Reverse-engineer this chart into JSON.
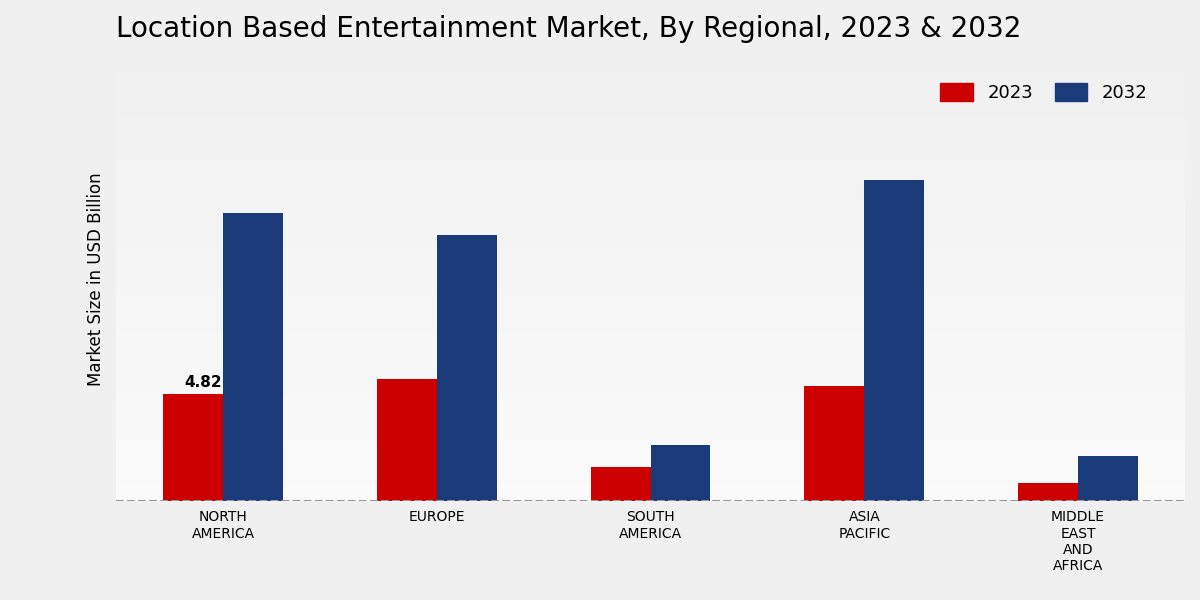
{
  "title": "Location Based Entertainment Market, By Regional, 2023 & 2032",
  "ylabel": "Market Size in USD Billion",
  "categories": [
    "NORTH\nAMERICA",
    "EUROPE",
    "SOUTH\nAMERICA",
    "ASIA\nPACIFIC",
    "MIDDLE\nEAST\nAND\nAFRICA"
  ],
  "values_2023": [
    4.82,
    5.5,
    1.5,
    5.2,
    0.8
  ],
  "values_2032": [
    13.0,
    12.0,
    2.5,
    14.5,
    2.0
  ],
  "color_2023": "#cc0000",
  "color_2032": "#1a3a7a",
  "annotation_label": "4.82",
  "annotation_bar_idx": 0,
  "ylim_min": 0,
  "ylim_max": 20,
  "bar_width": 0.28,
  "bg_color_top": "#e8e8e8",
  "bg_color_bottom": "#f5f5f5",
  "legend_labels": [
    "2023",
    "2032"
  ],
  "title_fontsize": 20,
  "axis_label_fontsize": 12,
  "tick_fontsize": 10,
  "dashed_line_color": "#999999",
  "annotation_fontsize": 11
}
